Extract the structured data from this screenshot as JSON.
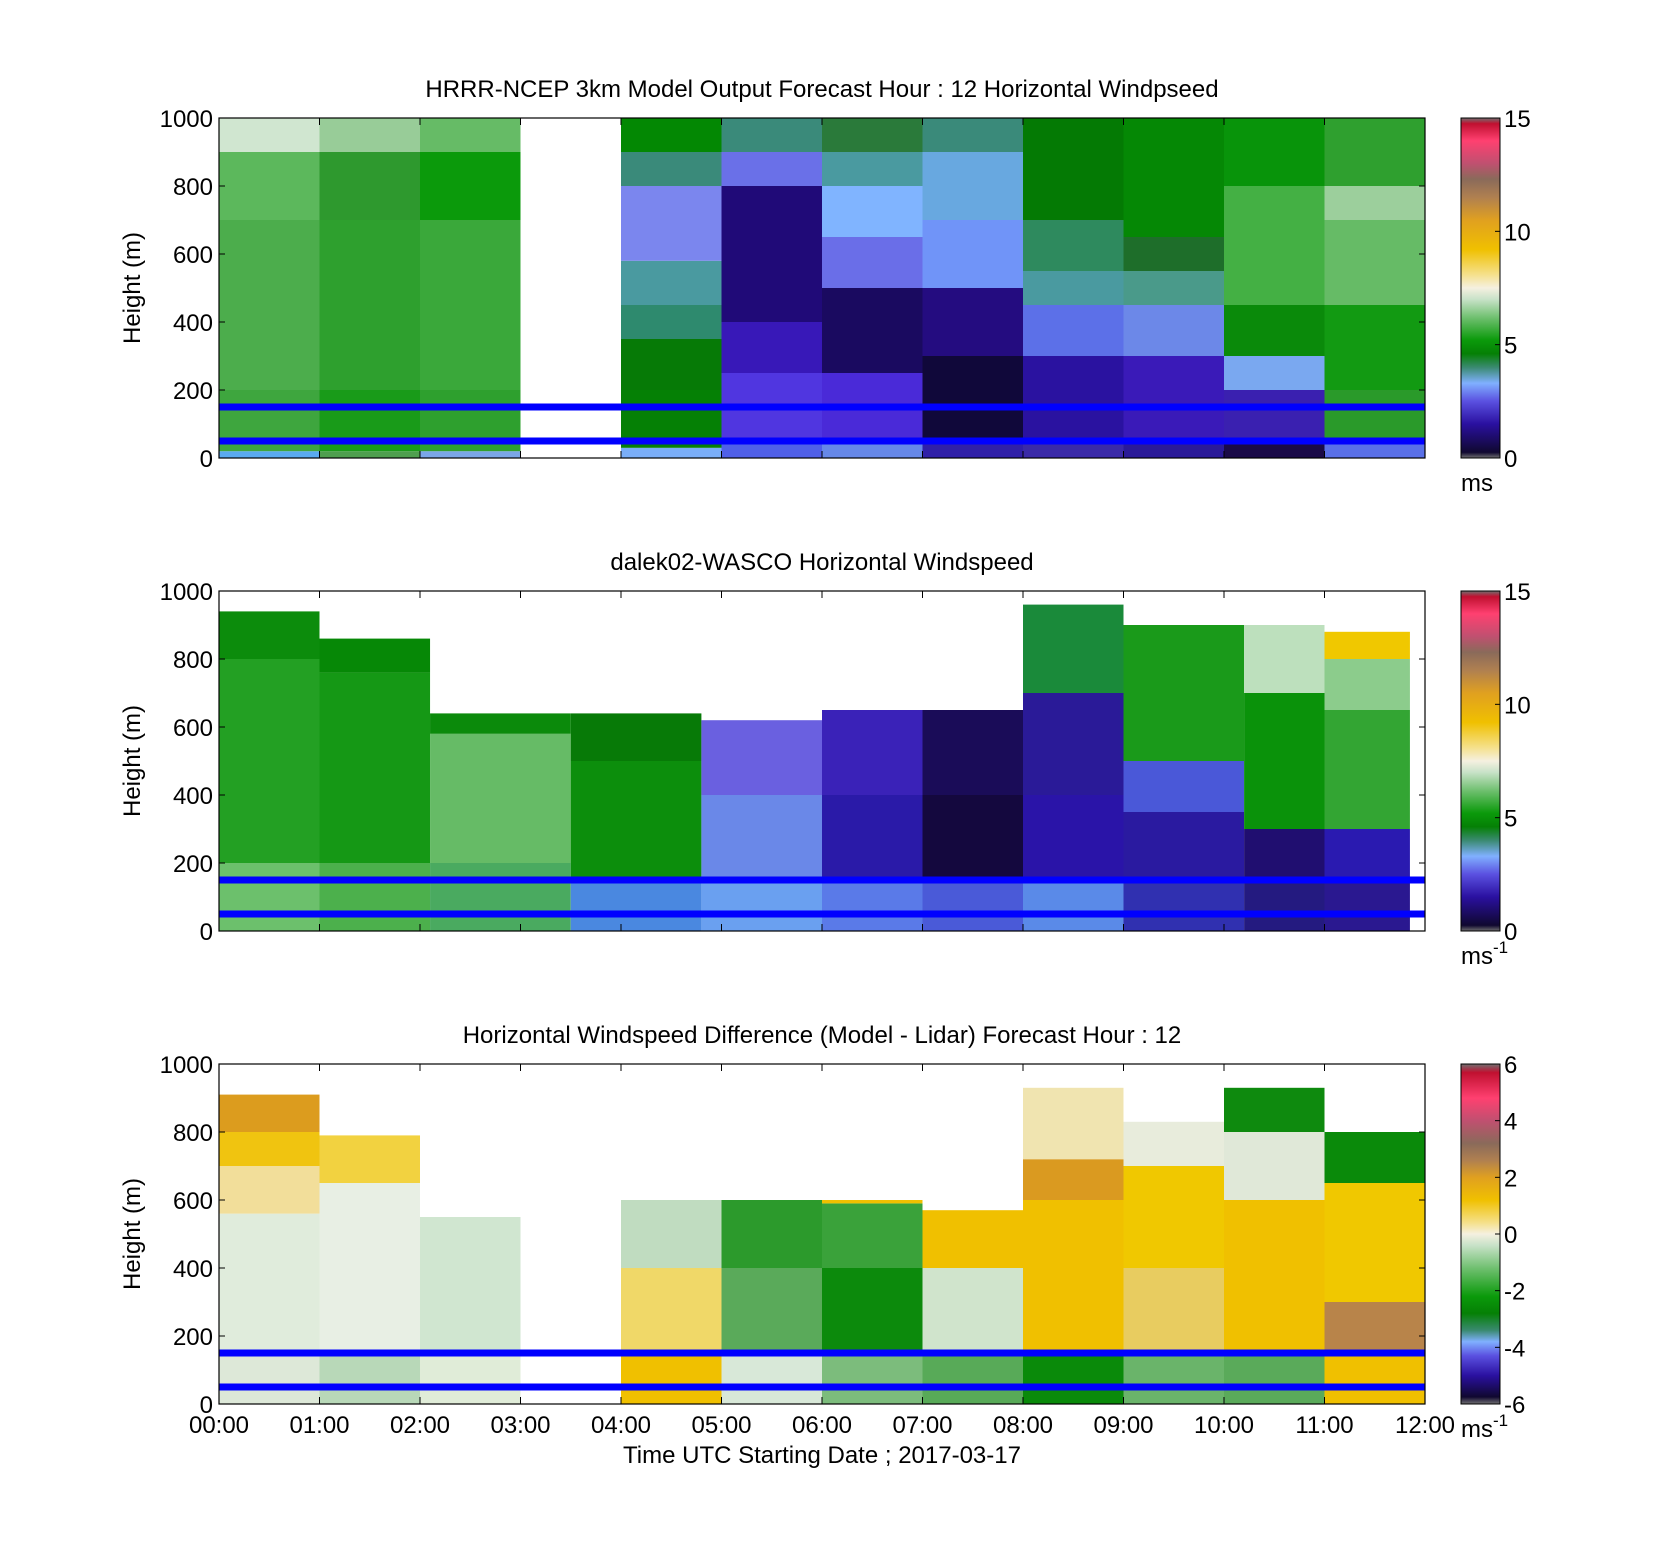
{
  "chart_data": [
    {
      "type": "heatmap",
      "id": "model",
      "title": "HRRR-NCEP 3km Model Output   Forecast Hour : 12 Horizontal Windpseed",
      "ylabel": "Height (m)",
      "ylim": [
        0,
        1000
      ],
      "yticks": [
        0,
        200,
        400,
        600,
        800,
        1000
      ],
      "xlim": [
        "00:00",
        "12:00"
      ],
      "colorbar": {
        "range": [
          0,
          15
        ],
        "ticks": [
          0,
          5,
          10,
          15
        ],
        "unit": "ms",
        "unit_exp": ""
      },
      "ref_lines_m": [
        150,
        50
      ],
      "ref_line_color": "#0000ff",
      "columns": [
        {
          "t0": 0,
          "t1": 1,
          "bins": [
            [
              0,
              20,
              "#5aaaf0"
            ],
            [
              20,
              200,
              "#3ea63e"
            ],
            [
              200,
              700,
              "#4cad4c"
            ],
            [
              700,
              900,
              "#5cb85c"
            ],
            [
              900,
              1000,
              "#d0e6d0"
            ]
          ]
        },
        {
          "t0": 1,
          "t1": 2,
          "bins": [
            [
              0,
              20,
              "#4f9f4f"
            ],
            [
              20,
              200,
              "#199b19"
            ],
            [
              200,
              700,
              "#2ea02e"
            ],
            [
              700,
              900,
              "#2e992e"
            ],
            [
              900,
              1000,
              "#98cc98"
            ]
          ]
        },
        {
          "t0": 2,
          "t1": 3,
          "bins": [
            [
              0,
              20,
              "#7aa6e8"
            ],
            [
              20,
              200,
              "#2ea02e"
            ],
            [
              200,
              700,
              "#3aa83a"
            ],
            [
              700,
              900,
              "#0b9a0b"
            ],
            [
              900,
              1000,
              "#66bb66"
            ]
          ]
        },
        {
          "t0": 4,
          "t1": 5,
          "bins": [
            [
              0,
              30,
              "#7aaef8"
            ],
            [
              30,
              200,
              "#058005"
            ],
            [
              200,
              350,
              "#067a06"
            ],
            [
              350,
              450,
              "#2e8a6e"
            ],
            [
              450,
              580,
              "#4a9aa0"
            ],
            [
              580,
              800,
              "#7b86ee"
            ],
            [
              800,
              900,
              "#3a8a7a"
            ],
            [
              900,
              1000,
              "#038803"
            ]
          ]
        },
        {
          "t0": 5,
          "t1": 6,
          "bins": [
            [
              0,
              60,
              "#5060e8"
            ],
            [
              60,
              250,
              "#5036e0"
            ],
            [
              250,
              400,
              "#3818b8"
            ],
            [
              400,
              800,
              "#200a78"
            ],
            [
              800,
              900,
              "#6a70e8"
            ],
            [
              900,
              1000,
              "#3a8a7a"
            ]
          ]
        },
        {
          "t0": 6,
          "t1": 7,
          "bins": [
            [
              0,
              60,
              "#6688e8"
            ],
            [
              60,
              250,
              "#4a2ad8"
            ],
            [
              250,
              500,
              "#1a0a60"
            ],
            [
              500,
              650,
              "#6a6ee8"
            ],
            [
              650,
              800,
              "#80b4ff"
            ],
            [
              800,
              900,
              "#4a9aa0"
            ],
            [
              900,
              1000,
              "#2a7a3a"
            ]
          ]
        },
        {
          "t0": 7,
          "t1": 8,
          "bins": [
            [
              0,
              60,
              "#3020a8"
            ],
            [
              60,
              300,
              "#10083a"
            ],
            [
              300,
              500,
              "#240c80"
            ],
            [
              500,
              700,
              "#7094f8"
            ],
            [
              700,
              900,
              "#68a8e0"
            ],
            [
              900,
              1000,
              "#3a8a7a"
            ]
          ]
        },
        {
          "t0": 8,
          "t1": 9,
          "bins": [
            [
              0,
              60,
              "#3a2aa8"
            ],
            [
              60,
              300,
              "#2a12a0"
            ],
            [
              300,
              450,
              "#5c70e8"
            ],
            [
              450,
              550,
              "#4a9aa0"
            ],
            [
              550,
              700,
              "#2e8a5e"
            ],
            [
              700,
              1000,
              "#047a04"
            ]
          ]
        },
        {
          "t0": 9,
          "t1": 10,
          "bins": [
            [
              0,
              60,
              "#2a1a98"
            ],
            [
              60,
              300,
              "#3a1ab8"
            ],
            [
              300,
              450,
              "#6c88e8"
            ],
            [
              450,
              550,
              "#4a9a8a"
            ],
            [
              550,
              650,
              "#1e6e2a"
            ],
            [
              650,
              1000,
              "#058805"
            ]
          ]
        },
        {
          "t0": 10,
          "t1": 11,
          "bins": [
            [
              0,
              60,
              "#1a0a48"
            ],
            [
              60,
              200,
              "#3a20b0"
            ],
            [
              200,
              300,
              "#7aa8f0"
            ],
            [
              300,
              450,
              "#0a8a0a"
            ],
            [
              450,
              800,
              "#44b044"
            ],
            [
              800,
              1000,
              "#08940a"
            ]
          ]
        },
        {
          "t0": 11,
          "t1": 12,
          "bins": [
            [
              0,
              60,
              "#5a70e8"
            ],
            [
              60,
              200,
              "#2a9a2a"
            ],
            [
              200,
              450,
              "#129a12"
            ],
            [
              450,
              700,
              "#66bb66"
            ],
            [
              700,
              800,
              "#9ccf9c"
            ],
            [
              800,
              1000,
              "#2fa02f"
            ]
          ]
        }
      ]
    },
    {
      "type": "heatmap",
      "id": "lidar",
      "title": "dalek02-WASCO  Horizontal Windspeed",
      "ylabel": "Height (m)",
      "ylim": [
        0,
        1000
      ],
      "yticks": [
        0,
        200,
        400,
        600,
        800,
        1000
      ],
      "xlim": [
        "00:00",
        "12:00"
      ],
      "colorbar": {
        "range": [
          0,
          15
        ],
        "ticks": [
          0,
          5,
          10,
          15
        ],
        "unit": "ms",
        "unit_exp": "-1"
      },
      "ref_lines_m": [
        150,
        50
      ],
      "ref_line_color": "#0000ff",
      "columns": [
        {
          "t0": 0.0,
          "t1": 1.0,
          "bins": [
            [
              0,
              200,
              "#6cc06c"
            ],
            [
              200,
              800,
              "#23a023"
            ],
            [
              800,
              940,
              "#0c8c0c"
            ]
          ]
        },
        {
          "t0": 1.0,
          "t1": 2.1,
          "bins": [
            [
              0,
              200,
              "#4cb04c"
            ],
            [
              200,
              760,
              "#159815"
            ],
            [
              760,
              860,
              "#068806"
            ]
          ]
        },
        {
          "t0": 2.1,
          "t1": 3.5,
          "bins": [
            [
              0,
              200,
              "#4aaa60"
            ],
            [
              200,
              580,
              "#66bb66"
            ],
            [
              580,
              640,
              "#0b8a0b"
            ]
          ]
        },
        {
          "t0": 3.5,
          "t1": 4.8,
          "bins": [
            [
              0,
              150,
              "#4a88e0"
            ],
            [
              150,
              500,
              "#0c8e0c"
            ],
            [
              500,
              640,
              "#077a07"
            ]
          ]
        },
        {
          "t0": 4.8,
          "t1": 6.0,
          "bins": [
            [
              0,
              150,
              "#6aa0f0"
            ],
            [
              150,
              400,
              "#6a88e8"
            ],
            [
              400,
              620,
              "#6a60e0"
            ]
          ]
        },
        {
          "t0": 6.0,
          "t1": 7.0,
          "bins": [
            [
              0,
              150,
              "#5a7ae8"
            ],
            [
              150,
              400,
              "#2a1aa8"
            ],
            [
              400,
              650,
              "#3a22b8"
            ]
          ]
        },
        {
          "t0": 7.0,
          "t1": 8.0,
          "bins": [
            [
              0,
              150,
              "#4a5ad8"
            ],
            [
              150,
              400,
              "#14083e"
            ],
            [
              400,
              650,
              "#1a0c58"
            ]
          ]
        },
        {
          "t0": 8.0,
          "t1": 9.0,
          "bins": [
            [
              0,
              150,
              "#5a8ae8"
            ],
            [
              150,
              400,
              "#2a14a8"
            ],
            [
              400,
              700,
              "#2a1a98"
            ],
            [
              700,
              960,
              "#1a8a3a"
            ]
          ]
        },
        {
          "t0": 9.0,
          "t1": 10.2,
          "bins": [
            [
              0,
              150,
              "#3030b0"
            ],
            [
              150,
              350,
              "#2a1aa0"
            ],
            [
              350,
              500,
              "#4a58d8"
            ],
            [
              500,
              900,
              "#1a9a1a"
            ]
          ]
        },
        {
          "t0": 10.2,
          "t1": 11.0,
          "bins": [
            [
              0,
              150,
              "#241a80"
            ],
            [
              150,
              300,
              "#200e70"
            ],
            [
              300,
              700,
              "#0a920a"
            ],
            [
              700,
              900,
              "#bde0bd"
            ]
          ]
        },
        {
          "t0": 11.0,
          "t1": 11.85,
          "bins": [
            [
              0,
              150,
              "#2a1890"
            ],
            [
              150,
              300,
              "#2a1ab0"
            ],
            [
              300,
              650,
              "#33a533"
            ],
            [
              650,
              800,
              "#8ccc8c"
            ],
            [
              800,
              880,
              "#f0c800"
            ]
          ]
        }
      ]
    },
    {
      "type": "heatmap",
      "id": "difference",
      "title": "Horizontal Windspeed Difference (Model - Lidar) Forecast Hour : 12",
      "ylabel": "Height (m)",
      "xlabel": "Time UTC  Starting Date ; 2017-03-17",
      "ylim": [
        0,
        1000
      ],
      "yticks": [
        0,
        200,
        400,
        600,
        800,
        1000
      ],
      "xticks": [
        "00:00",
        "01:00",
        "02:00",
        "03:00",
        "04:00",
        "05:00",
        "06:00",
        "07:00",
        "08:00",
        "09:00",
        "10:00",
        "11:00",
        "12:00"
      ],
      "colorbar": {
        "range": [
          -6,
          6
        ],
        "ticks": [
          6,
          4,
          2,
          0,
          -2,
          -4,
          -6
        ],
        "unit": "ms",
        "unit_exp": "-1"
      },
      "ref_lines_m": [
        150,
        50
      ],
      "ref_line_color": "#0000ff",
      "columns": [
        {
          "t0": 0,
          "t1": 1,
          "bins": [
            [
              0,
              160,
              "#dde8d8"
            ],
            [
              160,
              560,
              "#e0ecdc"
            ],
            [
              560,
              700,
              "#f2de9a"
            ],
            [
              700,
              800,
              "#f0c410"
            ],
            [
              800,
              910,
              "#dc9c1e"
            ]
          ]
        },
        {
          "t0": 1,
          "t1": 2,
          "bins": [
            [
              0,
              160,
              "#b8d8b8"
            ],
            [
              160,
              650,
              "#e8efe4"
            ],
            [
              650,
              790,
              "#f2d240"
            ]
          ]
        },
        {
          "t0": 2,
          "t1": 3,
          "bins": [
            [
              0,
              160,
              "#e0ecd8"
            ],
            [
              160,
              550,
              "#d0e6d0"
            ]
          ]
        },
        {
          "t0": 4,
          "t1": 5,
          "bins": [
            [
              0,
              160,
              "#f0c000"
            ],
            [
              160,
              400,
              "#f0d868"
            ],
            [
              400,
              600,
              "#c0dcc0"
            ]
          ]
        },
        {
          "t0": 5,
          "t1": 6,
          "bins": [
            [
              0,
              160,
              "#d8e8d8"
            ],
            [
              160,
              400,
              "#5aaa5a"
            ],
            [
              400,
              600,
              "#2c9a2c"
            ]
          ]
        },
        {
          "t0": 6,
          "t1": 7,
          "bins": [
            [
              0,
              160,
              "#7cbc7c"
            ],
            [
              160,
              400,
              "#0c8a0c"
            ],
            [
              400,
              590,
              "#3aa23a"
            ],
            [
              590,
              600,
              "#f0c000"
            ]
          ]
        },
        {
          "t0": 7,
          "t1": 8,
          "bins": [
            [
              0,
              160,
              "#58aa58"
            ],
            [
              160,
              400,
              "#d0e4cc"
            ],
            [
              400,
              570,
              "#f0c000"
            ]
          ]
        },
        {
          "t0": 8,
          "t1": 9,
          "bins": [
            [
              0,
              160,
              "#0a8a0a"
            ],
            [
              160,
              600,
              "#f0c000"
            ],
            [
              600,
              720,
              "#da9a20"
            ],
            [
              720,
              930,
              "#f0e4b0"
            ]
          ]
        },
        {
          "t0": 9,
          "t1": 10,
          "bins": [
            [
              0,
              160,
              "#6ab46a"
            ],
            [
              160,
              400,
              "#e8cc60"
            ],
            [
              400,
              700,
              "#f0c800"
            ],
            [
              700,
              830,
              "#e8ecdc"
            ]
          ]
        },
        {
          "t0": 10,
          "t1": 11,
          "bins": [
            [
              0,
              160,
              "#5aaa5a"
            ],
            [
              160,
              600,
              "#f0c000"
            ],
            [
              600,
              800,
              "#e0e8d8"
            ],
            [
              800,
              930,
              "#0e8a0e"
            ]
          ]
        },
        {
          "t0": 11,
          "t1": 12,
          "bins": [
            [
              0,
              160,
              "#f0c000"
            ],
            [
              160,
              300,
              "#b8844a"
            ],
            [
              300,
              650,
              "#f0c800"
            ],
            [
              650,
              800,
              "#0a8a0a"
            ]
          ]
        }
      ]
    }
  ]
}
